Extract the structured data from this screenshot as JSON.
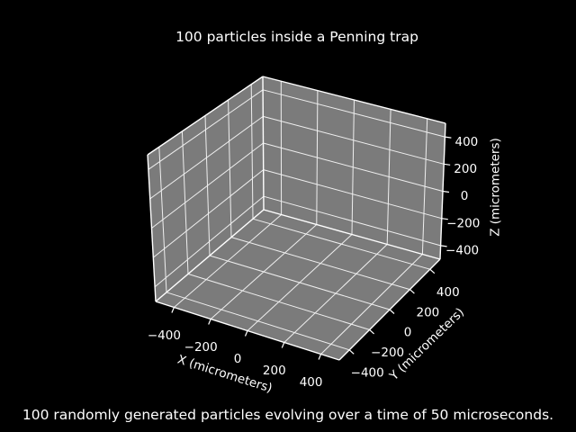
{
  "figure": {
    "background_color": "#000000",
    "text_color": "#ffffff",
    "caption": "100 randomly generated particles evolving over a time of 50 microseconds."
  },
  "chart_data": {
    "type": "scatter",
    "projection": "3d",
    "title": "100 particles inside a Penning trap",
    "xlabel": "X (micrometers)",
    "ylabel": "Y (micrometers)",
    "zlabel": "Z (micrometers)",
    "xlim": [
      -500,
      500
    ],
    "ylim": [
      -500,
      500
    ],
    "zlim": [
      -500,
      500
    ],
    "xticks": {
      "values": [
        -400,
        -200,
        0,
        200,
        400
      ],
      "labels": [
        "−400",
        "−200",
        "0",
        "200",
        "400"
      ]
    },
    "yticks": {
      "values": [
        -400,
        -200,
        0,
        200,
        400
      ],
      "labels": [
        "−400",
        "−200",
        "0",
        "200",
        "400"
      ]
    },
    "zticks": {
      "values": [
        -400,
        -200,
        0,
        200,
        400
      ],
      "labels": [
        "−400",
        "−200",
        "0",
        "200",
        "400"
      ]
    },
    "grid": true,
    "legend": false,
    "series": [],
    "colors": {
      "pane": "#7b7b7b",
      "grid": "#efefef",
      "edge": "#ffffff"
    }
  }
}
